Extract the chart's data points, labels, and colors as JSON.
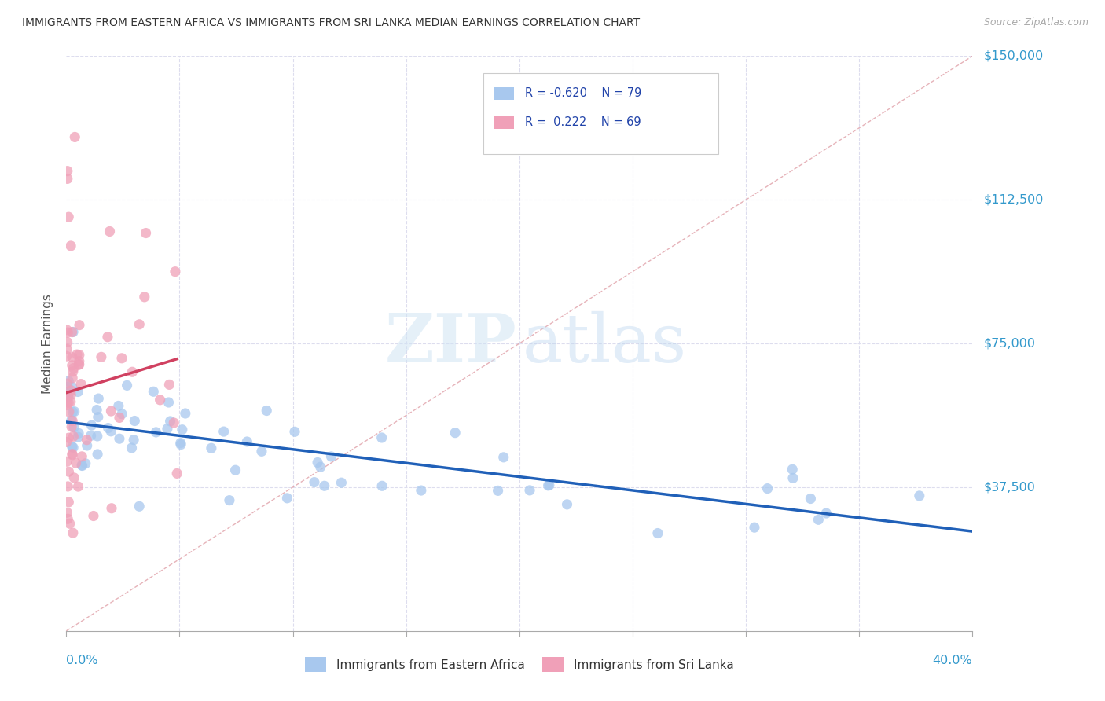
{
  "title": "IMMIGRANTS FROM EASTERN AFRICA VS IMMIGRANTS FROM SRI LANKA MEDIAN EARNINGS CORRELATION CHART",
  "source": "Source: ZipAtlas.com",
  "ylabel": "Median Earnings",
  "x_min": 0.0,
  "x_max": 40.0,
  "y_min": 0,
  "y_max": 150000,
  "R_blue": -0.62,
  "N_blue": 79,
  "R_pink": 0.222,
  "N_pink": 69,
  "blue_color": "#A8C8EE",
  "pink_color": "#F0A0B8",
  "blue_line_color": "#2060B8",
  "pink_line_color": "#D04060",
  "diag_color": "#E0A0A8",
  "grid_color": "#DDDDEE",
  "background_color": "#FFFFFF",
  "seed": 42
}
